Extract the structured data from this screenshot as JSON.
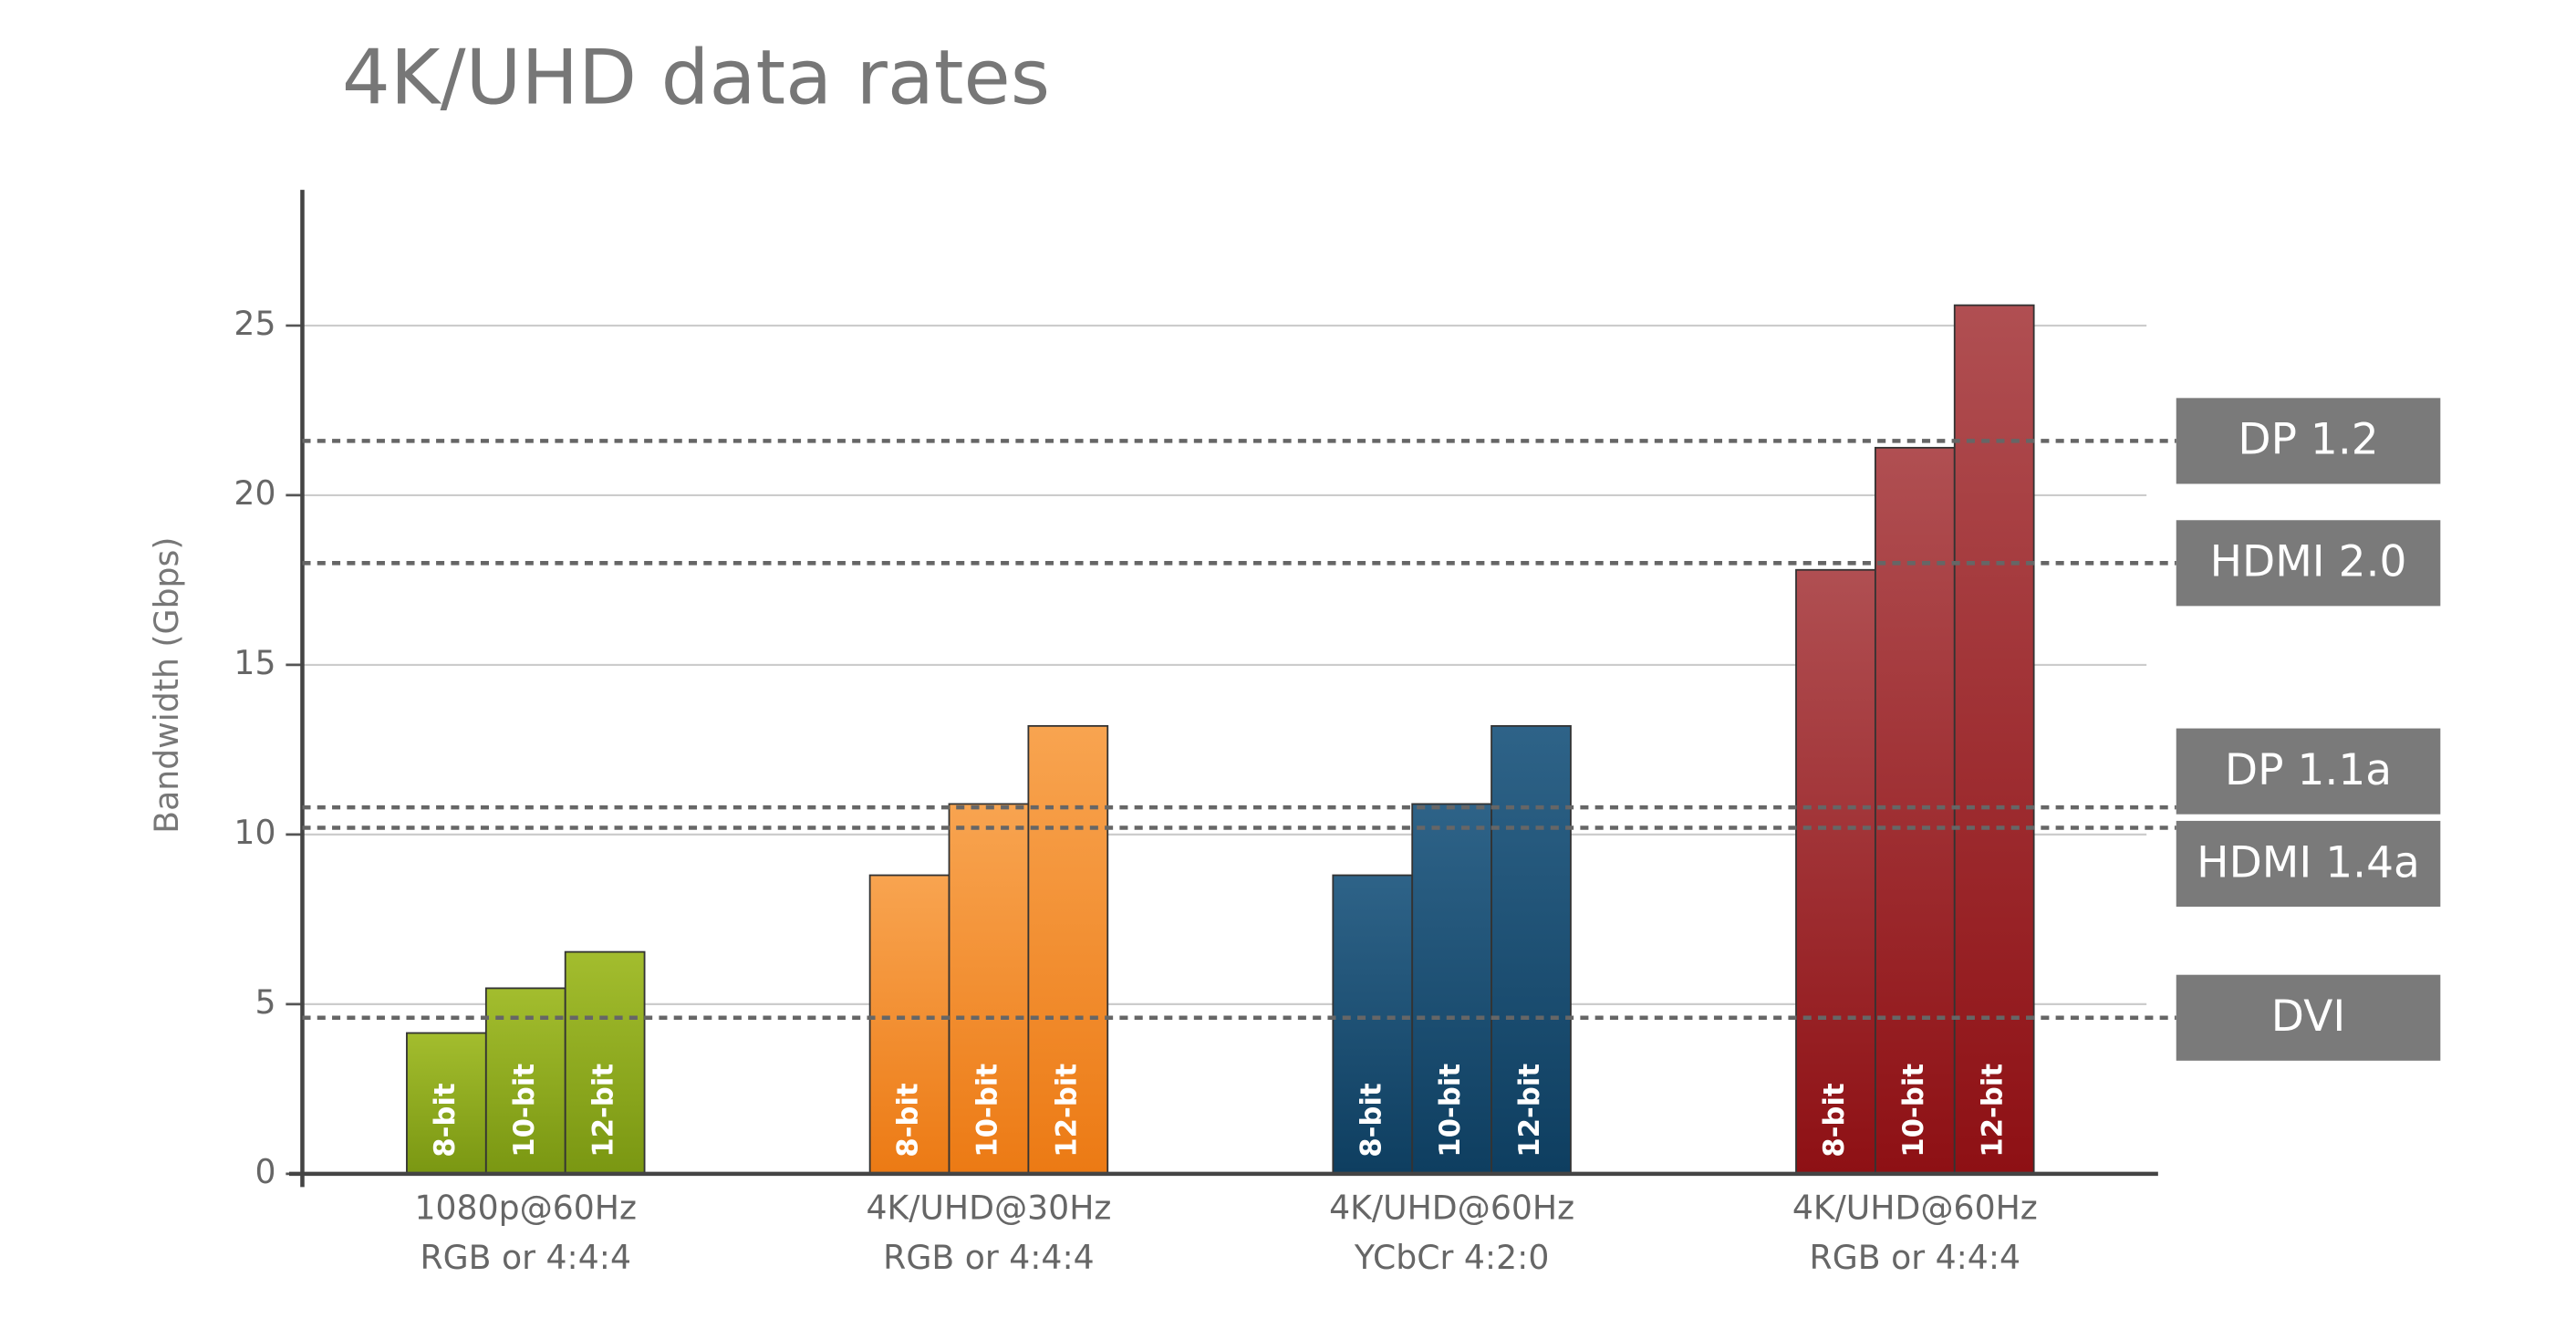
{
  "chart_data": {
    "type": "grouped-bar",
    "title": "4K/UHD data rates",
    "y_label": "Bandwidth (Gbps)",
    "categories": [
      [
        "1080p@60Hz",
        "RGB or 4:4:4"
      ],
      [
        "4K/UHD@30Hz",
        "RGB or 4:4:4"
      ],
      [
        "4K/UHD@60Hz",
        "YCbCr 4:2:0"
      ],
      [
        "4K/UHD@60Hz",
        "RGB or 4:4:4"
      ]
    ],
    "category_colors": [
      [
        "#a3bd2e",
        "#7a9712"
      ],
      [
        "#f8a450",
        "#ec7a14"
      ],
      [
        "#2e6388",
        "#0e3e60"
      ],
      [
        "#b04f52",
        "#8e1014"
      ]
    ],
    "series": [
      {
        "name": "8-bit",
        "values": [
          4.15,
          8.8,
          8.8,
          17.8
        ]
      },
      {
        "name": "10-bit",
        "values": [
          5.47,
          10.9,
          10.9,
          21.4
        ]
      },
      {
        "name": "12-bit",
        "values": [
          6.54,
          13.2,
          13.2,
          25.6
        ]
      }
    ],
    "reference_lines": [
      {
        "label": "DP 1.2",
        "value": 21.6
      },
      {
        "label": "HDMI 2.0",
        "value": 18
      },
      {
        "label": "DP 1.1a",
        "value": 10.8
      },
      {
        "label": "HDMI 1.4a",
        "value": 10.2
      },
      {
        "label": "DVI",
        "value": 4.6
      }
    ],
    "ylim": [
      0,
      29
    ],
    "yticks": [
      0,
      5,
      10,
      15,
      20,
      25
    ],
    "grid": true
  }
}
